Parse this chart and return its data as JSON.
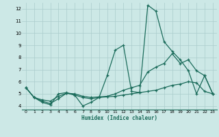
{
  "xlabel": "Humidex (Indice chaleur)",
  "bg_color": "#cce8e6",
  "grid_color": "#aacccc",
  "line_color": "#1a6b5a",
  "xlim": [
    -0.5,
    23.5
  ],
  "ylim": [
    3.7,
    12.5
  ],
  "xticks": [
    0,
    1,
    2,
    3,
    4,
    5,
    6,
    7,
    8,
    9,
    10,
    11,
    12,
    13,
    14,
    15,
    16,
    17,
    18,
    19,
    20,
    21,
    22,
    23
  ],
  "yticks": [
    4,
    5,
    6,
    7,
    8,
    9,
    10,
    11,
    12
  ],
  "line1_x": [
    0,
    1,
    2,
    3,
    4,
    5,
    6,
    7,
    8,
    9,
    10,
    11,
    12,
    13,
    14,
    15,
    16,
    17,
    18,
    19,
    20,
    21,
    22,
    23
  ],
  "line1_y": [
    5.5,
    4.7,
    4.3,
    4.1,
    5.0,
    5.1,
    4.9,
    4.0,
    4.3,
    4.7,
    6.5,
    8.6,
    9.0,
    5.2,
    5.1,
    12.3,
    11.8,
    9.3,
    8.5,
    7.8,
    6.9,
    5.0,
    6.5,
    5.0
  ],
  "line2_x": [
    0,
    1,
    2,
    3,
    4,
    5,
    6,
    7,
    8,
    9,
    10,
    11,
    12,
    13,
    14,
    15,
    16,
    17,
    18,
    19,
    20,
    21,
    22,
    23
  ],
  "line2_y": [
    5.5,
    4.7,
    4.5,
    4.4,
    4.8,
    5.05,
    5.0,
    4.8,
    4.7,
    4.75,
    4.8,
    5.0,
    5.3,
    5.5,
    5.7,
    6.8,
    7.2,
    7.5,
    8.3,
    7.5,
    7.8,
    6.9,
    6.5,
    5.0
  ],
  "line3_x": [
    0,
    1,
    2,
    3,
    4,
    5,
    6,
    7,
    8,
    9,
    10,
    11,
    12,
    13,
    14,
    15,
    16,
    17,
    18,
    19,
    20,
    21,
    22,
    23
  ],
  "line3_y": [
    5.5,
    4.7,
    4.4,
    4.2,
    4.6,
    5.05,
    4.9,
    4.7,
    4.6,
    4.7,
    4.75,
    4.8,
    4.9,
    5.0,
    5.1,
    5.2,
    5.3,
    5.5,
    5.7,
    5.8,
    6.0,
    5.9,
    5.2,
    5.0
  ]
}
